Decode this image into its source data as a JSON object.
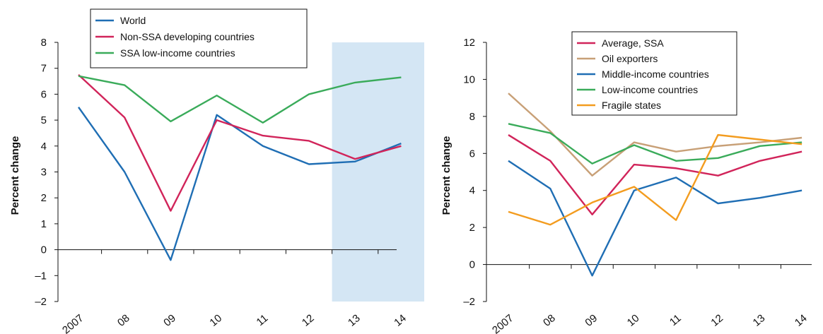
{
  "chart_data": [
    {
      "type": "line",
      "title": "",
      "ylabel": "Percent change",
      "categories": [
        "2007",
        "08",
        "09",
        "10",
        "11",
        "12",
        "13",
        "14"
      ],
      "ylim": [
        -2,
        8
      ],
      "yticks": [
        "–2",
        "–1",
        "0",
        "1",
        "2",
        "3",
        "4",
        "5",
        "6",
        "7",
        "8"
      ],
      "shaded_region": {
        "from": "13",
        "to": "14",
        "color": "#d4e6f4"
      },
      "legend": "top-left",
      "series": [
        {
          "name": "World",
          "color": "#1f6eb4",
          "values": [
            5.5,
            3.0,
            -0.4,
            5.2,
            4.0,
            3.3,
            3.4,
            4.1
          ]
        },
        {
          "name": "Non-SSA developing countries",
          "color": "#d1245a",
          "values": [
            6.75,
            5.1,
            1.5,
            5.0,
            4.4,
            4.2,
            3.5,
            4.0
          ]
        },
        {
          "name": "SSA low-income countries",
          "color": "#3aab5a",
          "values": [
            6.7,
            6.35,
            4.95,
            5.95,
            4.9,
            6.0,
            6.45,
            6.65
          ]
        }
      ]
    },
    {
      "type": "line",
      "title": "",
      "ylabel": "Percent change",
      "categories": [
        "2007",
        "08",
        "09",
        "10",
        "11",
        "12",
        "13",
        "14"
      ],
      "ylim": [
        -2,
        12
      ],
      "yticks": [
        "–2",
        "0",
        "2",
        "4",
        "6",
        "8",
        "10",
        "12"
      ],
      "legend": "top-center",
      "series": [
        {
          "name": "Average, SSA",
          "color": "#d1245a",
          "values": [
            7.0,
            5.6,
            2.7,
            5.4,
            5.2,
            4.8,
            5.6,
            6.1
          ]
        },
        {
          "name": "Oil exporters",
          "color": "#c8a077",
          "values": [
            9.25,
            7.2,
            4.8,
            6.6,
            6.1,
            6.4,
            6.6,
            6.85
          ]
        },
        {
          "name": "Middle-income countries",
          "color": "#1f6eb4",
          "values": [
            5.6,
            4.1,
            -0.6,
            4.0,
            4.7,
            3.3,
            3.6,
            4.0
          ]
        },
        {
          "name": "Low-income countries",
          "color": "#3aab5a",
          "values": [
            7.6,
            7.1,
            5.45,
            6.45,
            5.6,
            5.75,
            6.4,
            6.6
          ]
        },
        {
          "name": "Fragile states",
          "color": "#f39c1f",
          "values": [
            2.85,
            2.15,
            3.35,
            4.2,
            2.4,
            7.0,
            6.75,
            6.5
          ]
        }
      ]
    }
  ]
}
